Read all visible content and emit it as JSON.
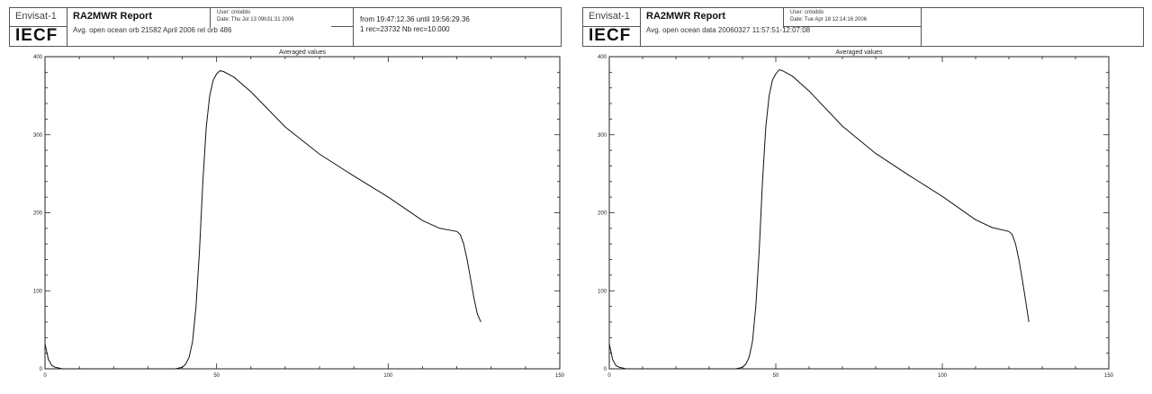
{
  "left": {
    "header": {
      "mission": "Envisat-1",
      "org": "IECF",
      "report_title": "RA2MWR Report",
      "subtitle": "Avg. open ocean orb 21582 April 2006 rel orb 486",
      "user": "User: cnloddo",
      "date": "Date: Thu Jul 13 09h31:31 2006",
      "from_until": "from 19:47:12.36 until 19:56:29.36",
      "records": "1 rec=23732   Nb rec=10.000"
    }
  },
  "right": {
    "header": {
      "mission": "Envisat-1",
      "org": "IECF",
      "report_title": "RA2MWR Report",
      "subtitle": "Avg. open ocean data 20060327 11:57:51-12:07:08",
      "user": "User: cnloddo",
      "date": "Date: Tue Apr 18 12:14:16 2006"
    }
  },
  "chart_data": [
    {
      "type": "line",
      "title": "Averaged values",
      "xlabel": "",
      "ylabel": "",
      "xlim": [
        0,
        150
      ],
      "ylim": [
        0,
        400
      ],
      "x_ticks": [
        0,
        50,
        100,
        150
      ],
      "y_ticks": [
        0,
        100,
        200,
        300,
        400
      ],
      "x_tick_labels": [
        "0",
        "50",
        "100",
        "150"
      ],
      "y_tick_labels": [
        "0",
        "100",
        "200",
        "300",
        "400"
      ],
      "grid": false,
      "series": [
        {
          "x": [
            0,
            1,
            2,
            3,
            4,
            5,
            38,
            40,
            41,
            42,
            43,
            44,
            45,
            46,
            47,
            48,
            49,
            50,
            51,
            52,
            55,
            60,
            70,
            80,
            90,
            100,
            110,
            115,
            120,
            121,
            122,
            123,
            124,
            125,
            126,
            127
          ],
          "y": [
            32,
            12,
            4,
            2,
            1,
            0,
            0,
            2,
            6,
            15,
            35,
            80,
            150,
            240,
            310,
            350,
            370,
            378,
            382,
            381,
            374,
            355,
            310,
            275,
            247,
            220,
            190,
            180,
            176,
            172,
            160,
            140,
            115,
            90,
            70,
            60
          ]
        }
      ]
    },
    {
      "type": "line",
      "title": "Averaged values",
      "xlabel": "",
      "ylabel": "",
      "xlim": [
        0,
        150
      ],
      "ylim": [
        0,
        400
      ],
      "x_ticks": [
        0,
        50,
        100,
        150
      ],
      "y_ticks": [
        0,
        100,
        200,
        300,
        400
      ],
      "x_tick_labels": [
        "0",
        "50",
        "100",
        "150"
      ],
      "y_tick_labels": [
        "0",
        "100",
        "200",
        "300",
        "400"
      ],
      "grid": false,
      "series": [
        {
          "x": [
            0,
            1,
            2,
            3,
            4,
            5,
            38,
            40,
            41,
            42,
            43,
            44,
            45,
            46,
            47,
            48,
            49,
            50,
            51,
            52,
            55,
            60,
            70,
            80,
            90,
            100,
            110,
            115,
            120,
            121,
            122,
            123,
            124,
            125,
            126
          ],
          "y": [
            32,
            12,
            4,
            2,
            1,
            0,
            0,
            2,
            6,
            15,
            35,
            80,
            150,
            240,
            310,
            350,
            370,
            378,
            383,
            382,
            375,
            356,
            311,
            276,
            248,
            221,
            191,
            181,
            176,
            172,
            160,
            140,
            115,
            88,
            60
          ]
        }
      ]
    }
  ]
}
